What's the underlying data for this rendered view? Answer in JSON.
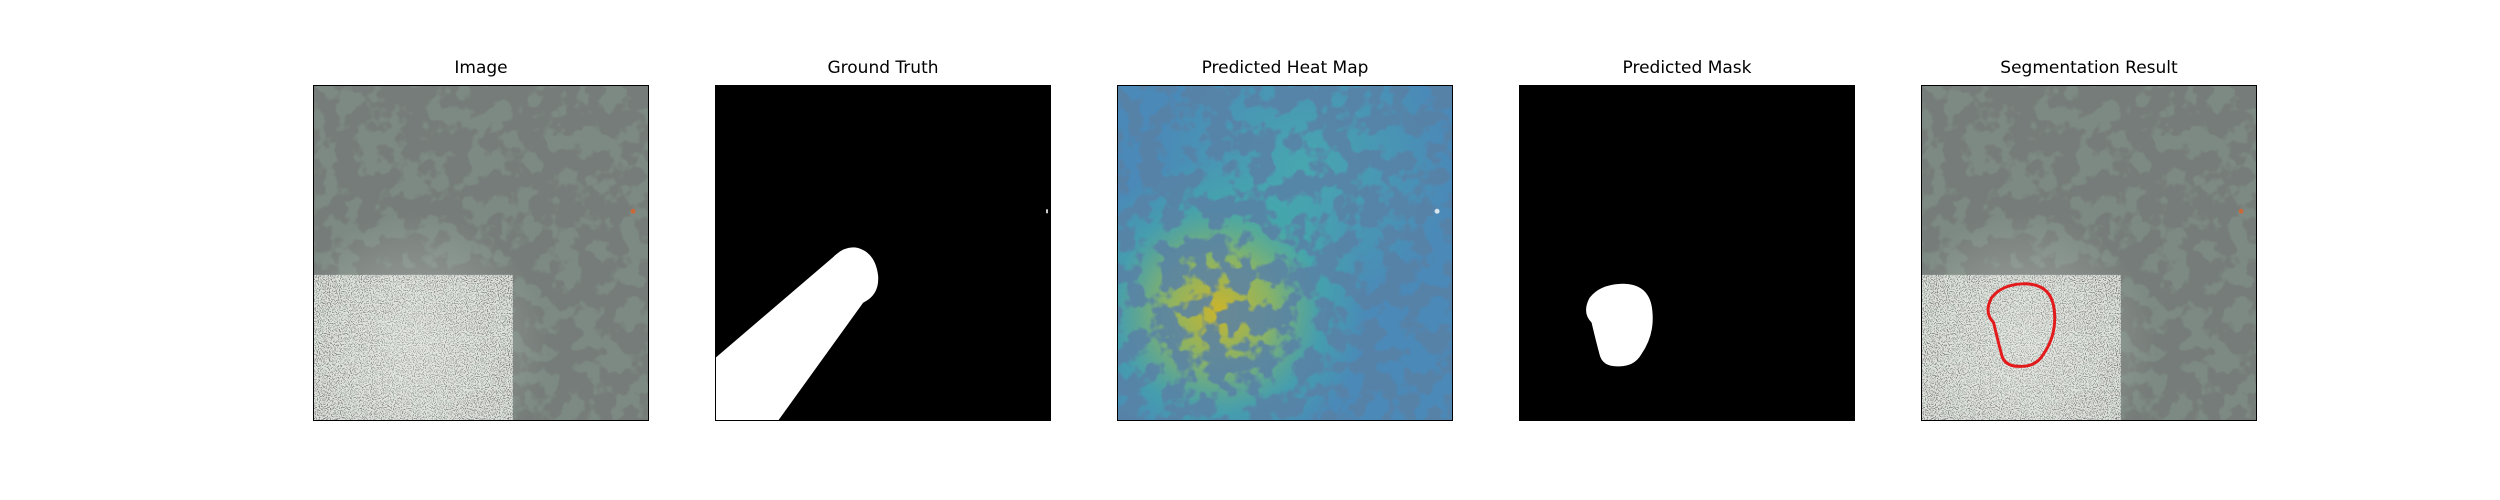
{
  "panels": [
    {
      "title": "Image"
    },
    {
      "title": "Ground Truth"
    },
    {
      "title": "Predicted Heat Map"
    },
    {
      "title": "Predicted Mask"
    },
    {
      "title": "Segmentation Result"
    }
  ],
  "colors": {
    "background": "#ffffff",
    "mask_foreground": "#ffffff",
    "mask_background": "#000000",
    "contour": "#e31a1c",
    "terrain_base": "#7d8a83",
    "terrain_dark": "#2f332f",
    "heat_low": "#3b6fa8",
    "heat_mid": "#3fb5a3",
    "heat_high": "#c8b528"
  }
}
